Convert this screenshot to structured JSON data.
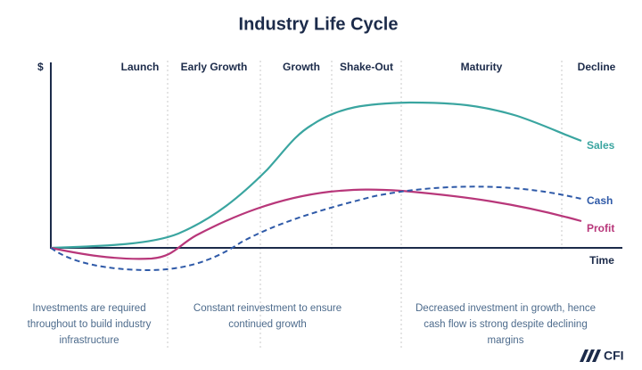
{
  "title": "Industry Life Cycle",
  "axis": {
    "y_label": "$",
    "x_label": "Time"
  },
  "stages": [
    "Launch",
    "Early Growth",
    "Growth",
    "Shake-Out",
    "Maturity",
    "Decline"
  ],
  "curves": {
    "sales": "Sales",
    "cash": "Cash",
    "profit": "Profit"
  },
  "notes": [
    [
      "Investments are required",
      "throughout to build industry",
      "infrastructure"
    ],
    [
      "Constant reinvestment to ensure",
      "continued growth"
    ],
    [
      "Decreased investment in growth, hence",
      "cash flow is strong despite declining",
      "margins"
    ]
  ],
  "logo": "CFI"
}
